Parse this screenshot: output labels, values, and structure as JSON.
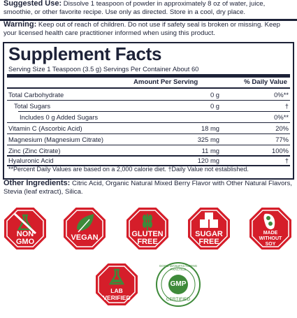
{
  "suggested_use": {
    "label": "Suggested Use:",
    "text": " Dissolve 1 teaspoon of powder in approximately 8 oz of water, juice, smoothie, or other favorite recipe. Use only as directed. Store in a cool, dry place."
  },
  "warning": {
    "label": "Warning:",
    "text": " Keep out of reach of children. Do not use if safety seal is broken or missing. Keep your licensed health care practitioner informed when using this product."
  },
  "facts": {
    "title": "Supplement Facts",
    "serving": "Serving Size 1 Teaspoon (3.5 g)  Servings Per Container About 60",
    "col_amount": "Amount Per Serving",
    "col_dv": "% Daily Value",
    "rows": [
      {
        "name": "Total Carbohydrate",
        "amount": "0 g",
        "dv": "0%**"
      },
      {
        "name": "Total Sugars",
        "amount": "0 g",
        "dv": "†"
      },
      {
        "name": "Includes 0 g Added Sugars",
        "amount": "",
        "dv": "0%**"
      },
      {
        "name": "Vitamin C (Ascorbic Acid)",
        "amount": "18 mg",
        "dv": "20%"
      },
      {
        "name": "Magnesium (Magnesium Citrate)",
        "amount": "325 mg",
        "dv": "77%"
      },
      {
        "name": "Zinc (Zinc Citrate)",
        "amount": "11 mg",
        "dv": "100%"
      },
      {
        "name": "Hyaluronic Acid",
        "amount": "120 mg",
        "dv": "†"
      }
    ],
    "footnote": "**Percent Daily Values are based on a 2,000 calorie diet.  †Daily Value not established."
  },
  "other_ingredients": {
    "label": "Other Ingredients:",
    "text": " Citric Acid, Organic Natural Mixed Berry Flavor with Other Natural Flavors, Stevia (leaf extract), Silica."
  },
  "badges": [
    {
      "line1": "NON",
      "line2": "GMO",
      "icon": "flask-icon"
    },
    {
      "line1": "VEGAN",
      "line2": "",
      "icon": "leaf-icon"
    },
    {
      "line1": "GLUTEN",
      "line2": "FREE",
      "icon": "wheat-icon"
    },
    {
      "line1": "SUGAR",
      "line2": "FREE",
      "icon": "sugar-cubes-icon"
    },
    {
      "line1": "MADE",
      "line2": "WITHOUT",
      "line3": "SOY",
      "icon": "soybean-icon"
    },
    {
      "line1": "LAB",
      "line2": "VERIFIED",
      "icon": "beaker-icon"
    }
  ],
  "gmp": {
    "arc_text": "GOOD MANUFACTURING PRACTICE",
    "center": "GMP",
    "bottom": "CERTIFIED"
  },
  "colors": {
    "navy": "#1d2238",
    "red": "#d51e2a",
    "green": "#3e8a3a"
  }
}
